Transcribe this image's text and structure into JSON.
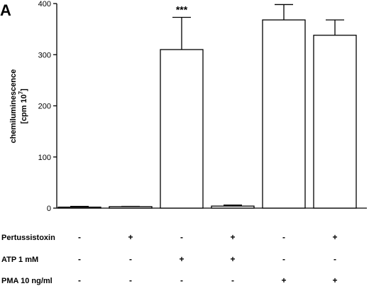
{
  "panel_letter": "A",
  "chart_data": {
    "type": "bar",
    "ylabel_lines": [
      "chemiluminescence",
      "[cpm 10",
      "]"
    ],
    "ylabel_superscript": "7",
    "ylim": [
      0,
      400
    ],
    "yticks": [
      "0",
      "100",
      "200",
      "300",
      "400"
    ],
    "grid": false,
    "legend": "none",
    "bar_color": "#ffffff",
    "series": [
      {
        "values": [
          2,
          3,
          310,
          4,
          368,
          338
        ],
        "errors": [
          1.5,
          0.5,
          63,
          2,
          30,
          30
        ]
      }
    ],
    "annotations": [
      {
        "bar_index": 2,
        "text": "***"
      }
    ],
    "conditions": [
      {
        "label": "Pertussistoxin",
        "values": [
          "-",
          "+",
          "-",
          "+",
          "-",
          "+"
        ]
      },
      {
        "label": "ATP 1 mM",
        "values": [
          "-",
          "-",
          "+",
          "+",
          "-",
          "-"
        ]
      },
      {
        "label": "PMA 10 ng/ml",
        "values": [
          "-",
          "-",
          "-",
          "-",
          "+",
          "+"
        ]
      }
    ]
  }
}
